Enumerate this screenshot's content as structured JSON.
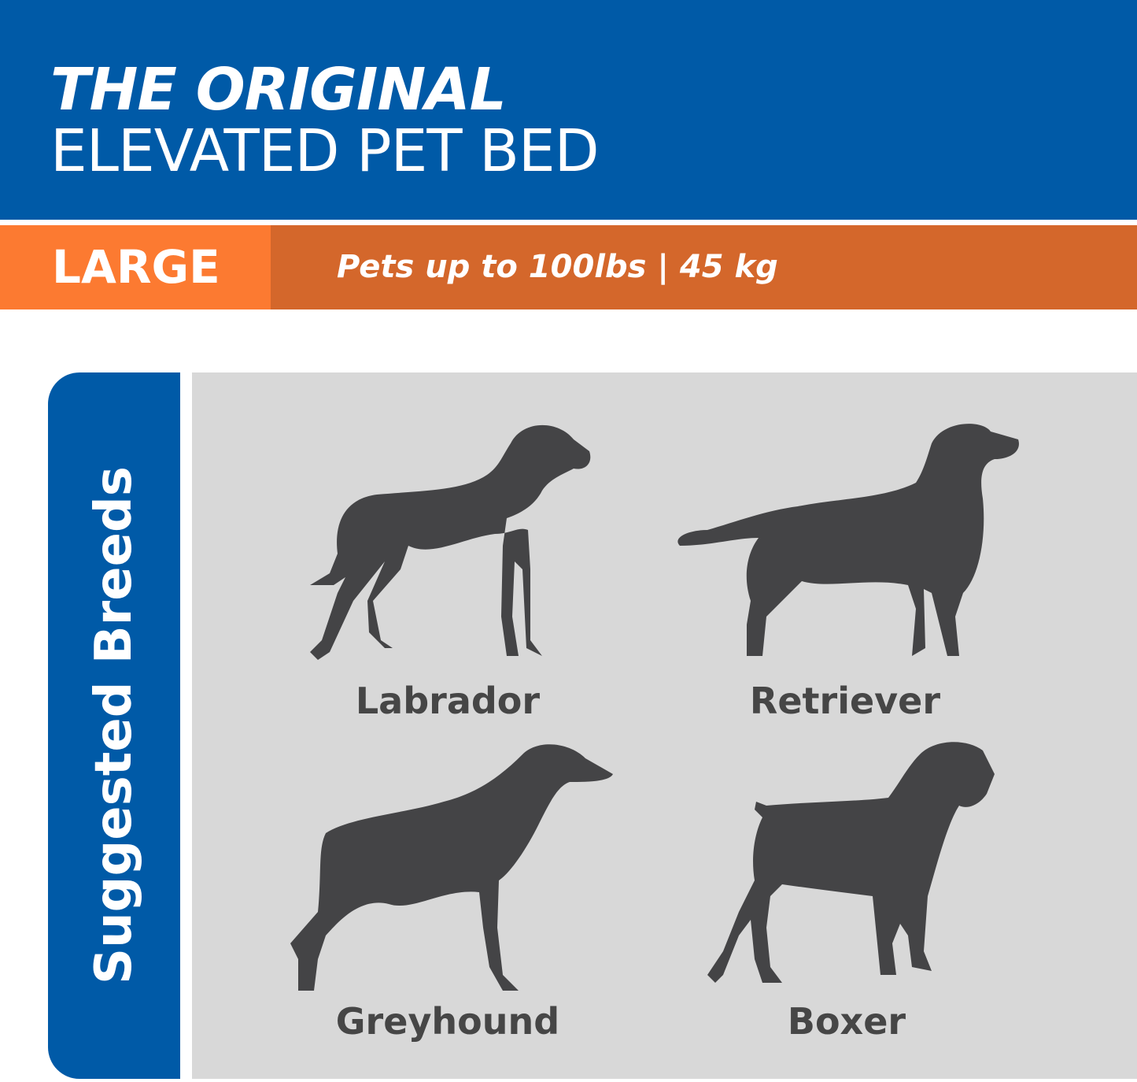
{
  "header": {
    "title_line1": "THE ORIGINAL",
    "title_line2": "ELEVATED PET BED"
  },
  "size_band": {
    "size": "LARGE",
    "capacity": "Pets up to 100lbs | 45 kg"
  },
  "breeds": {
    "heading": "Suggested Breeds",
    "items": [
      {
        "name": "Labrador",
        "icon": "labrador-silhouette-icon"
      },
      {
        "name": "Retriever",
        "icon": "retriever-silhouette-icon"
      },
      {
        "name": "Greyhound",
        "icon": "greyhound-silhouette-icon"
      },
      {
        "name": "Boxer",
        "icon": "boxer-silhouette-icon"
      }
    ]
  },
  "colors": {
    "blue": "#005aa7",
    "orange": "#fc7a31",
    "dark_orange": "#d4672b",
    "panel_grey": "#d8d8d8",
    "silhouette": "#444446"
  }
}
